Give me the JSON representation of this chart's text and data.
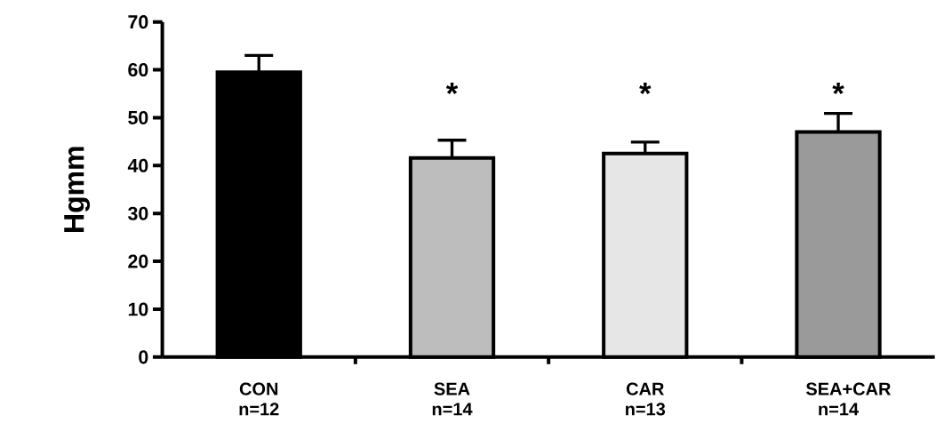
{
  "chart_data": {
    "type": "bar",
    "ylabel": "Hgmm",
    "categories": [
      "CON n=12",
      "SEA n=14",
      "CAR n=13",
      "SEA+CAR n=14"
    ],
    "values": [
      59.5,
      41.6,
      42.5,
      47.0
    ],
    "errors": [
      3.5,
      3.7,
      2.4,
      3.9
    ],
    "colors": [
      "#000000",
      "#bdbdbd",
      "#e6e6e6",
      "#9a9a9a"
    ],
    "ylim": [
      0,
      70
    ],
    "yticks": [
      0,
      10,
      20,
      30,
      40,
      50,
      60,
      70
    ],
    "grid": false,
    "annotations": [
      "*",
      "*",
      "*"
    ]
  }
}
